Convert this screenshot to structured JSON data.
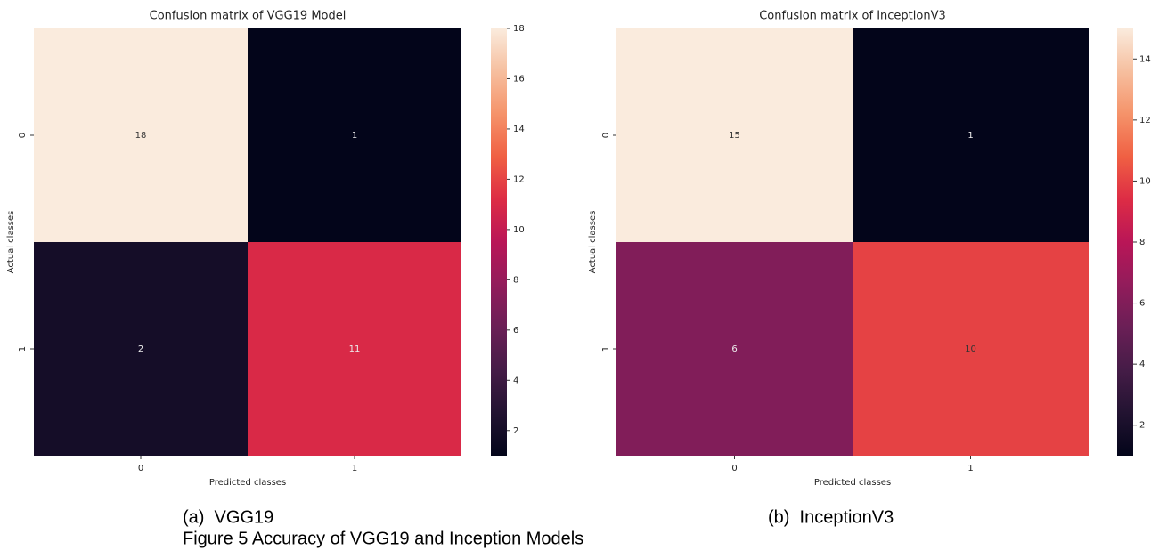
{
  "chart_data": [
    {
      "type": "heatmap",
      "title": "Confusion matrix of VGG19 Model",
      "x_categories": [
        "0",
        "1"
      ],
      "y_categories": [
        "0",
        "1"
      ],
      "values": [
        [
          18,
          1
        ],
        [
          2,
          11
        ]
      ],
      "xlabel": "Predicted classes",
      "ylabel": "Actual classes",
      "clim": [
        1,
        18
      ],
      "cticks": [
        2,
        4,
        6,
        8,
        10,
        12,
        14,
        16,
        18
      ]
    },
    {
      "type": "heatmap",
      "title": "Confusion matrix of InceptionV3",
      "x_categories": [
        "0",
        "1"
      ],
      "y_categories": [
        "0",
        "1"
      ],
      "values": [
        [
          15,
          1
        ],
        [
          6,
          10
        ]
      ],
      "xlabel": "Predicted classes",
      "ylabel": "Actual classes",
      "clim": [
        1,
        15
      ],
      "cticks": [
        2,
        4,
        6,
        8,
        10,
        12,
        14
      ]
    }
  ],
  "captions": [
    "(a)  VGG19",
    "(b)  InceptionV3"
  ],
  "figure_caption": "Figure 5 Accuracy of VGG19 and Inception Models"
}
